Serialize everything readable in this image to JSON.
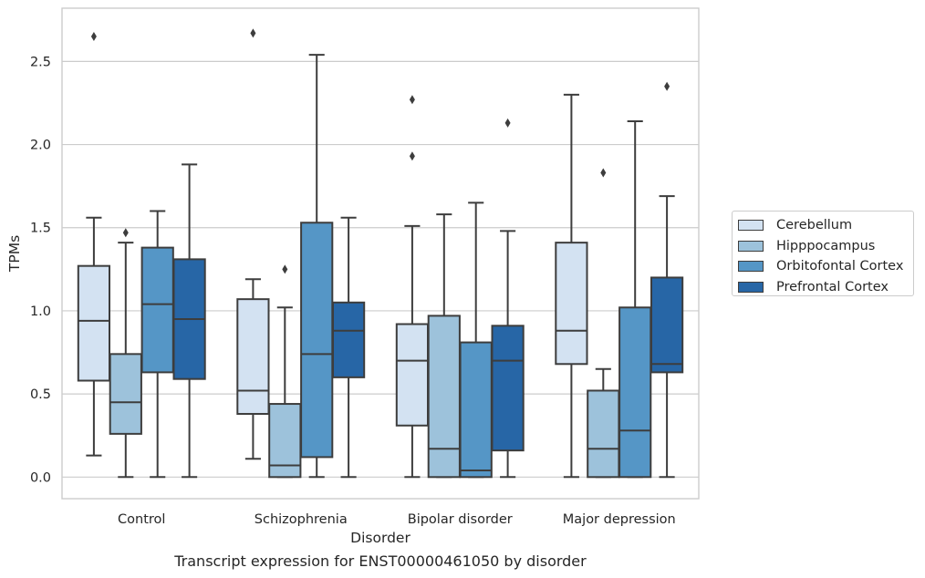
{
  "chart_data": {
    "type": "box",
    "title": "Transcript expression for ENST00000461050 by disorder",
    "xlabel": "Disorder",
    "ylabel": "TPMs",
    "ylim": [
      -0.13,
      2.82
    ],
    "yticks": [
      "0.0",
      "0.5",
      "1.0",
      "1.5",
      "2.0",
      "2.5"
    ],
    "ytick_values": [
      0,
      0.5,
      1.0,
      1.5,
      2.0,
      2.5
    ],
    "grid": "horizontal",
    "legend_position": "right",
    "categories": [
      "Control",
      "Schizophrenia",
      "Bipolar disorder",
      "Major depression"
    ],
    "series": [
      {
        "name": "Cerebellum",
        "color": "#d3e2f2",
        "boxes": [
          {
            "whislo": 0.13,
            "q1": 0.58,
            "med": 0.94,
            "q3": 1.27,
            "whishi": 1.56,
            "fliers": [
              2.65
            ]
          },
          {
            "whislo": 0.11,
            "q1": 0.38,
            "med": 0.52,
            "q3": 1.07,
            "whishi": 1.19,
            "fliers": [
              2.67
            ]
          },
          {
            "whislo": 0.0,
            "q1": 0.31,
            "med": 0.7,
            "q3": 0.92,
            "whishi": 1.51,
            "fliers": [
              1.93,
              2.27
            ]
          },
          {
            "whislo": 0.0,
            "q1": 0.68,
            "med": 0.88,
            "q3": 1.41,
            "whishi": 2.3,
            "fliers": []
          }
        ]
      },
      {
        "name": "Hipppocampus",
        "color": "#9dc2db",
        "boxes": [
          {
            "whislo": 0.0,
            "q1": 0.26,
            "med": 0.45,
            "q3": 0.74,
            "whishi": 1.41,
            "fliers": [
              1.47
            ]
          },
          {
            "whislo": 0.0,
            "q1": 0.0,
            "med": 0.07,
            "q3": 0.44,
            "whishi": 1.02,
            "fliers": [
              1.25
            ]
          },
          {
            "whislo": 0.0,
            "q1": 0.0,
            "med": 0.17,
            "q3": 0.97,
            "whishi": 1.58,
            "fliers": []
          },
          {
            "whislo": 0.0,
            "q1": 0.0,
            "med": 0.17,
            "q3": 0.52,
            "whishi": 0.65,
            "fliers": [
              1.83
            ]
          }
        ]
      },
      {
        "name": "Orbitofontal Cortex",
        "color": "#5596c6",
        "boxes": [
          {
            "whislo": 0.0,
            "q1": 0.63,
            "med": 1.04,
            "q3": 1.38,
            "whishi": 1.6,
            "fliers": []
          },
          {
            "whislo": 0.0,
            "q1": 0.12,
            "med": 0.74,
            "q3": 1.53,
            "whishi": 2.54,
            "fliers": []
          },
          {
            "whislo": 0.0,
            "q1": 0.0,
            "med": 0.04,
            "q3": 0.81,
            "whishi": 1.65,
            "fliers": []
          },
          {
            "whislo": 0.0,
            "q1": 0.0,
            "med": 0.28,
            "q3": 1.02,
            "whishi": 2.14,
            "fliers": []
          }
        ]
      },
      {
        "name": "Prefrontal Cortex",
        "color": "#2766a6",
        "boxes": [
          {
            "whislo": 0.0,
            "q1": 0.59,
            "med": 0.95,
            "q3": 1.31,
            "whishi": 1.88,
            "fliers": []
          },
          {
            "whislo": 0.0,
            "q1": 0.6,
            "med": 0.88,
            "q3": 1.05,
            "whishi": 1.56,
            "fliers": []
          },
          {
            "whislo": 0.0,
            "q1": 0.16,
            "med": 0.7,
            "q3": 0.91,
            "whishi": 1.48,
            "fliers": [
              2.13
            ]
          },
          {
            "whislo": 0.0,
            "q1": 0.63,
            "med": 0.68,
            "q3": 1.2,
            "whishi": 1.69,
            "fliers": [
              2.35
            ]
          }
        ]
      }
    ]
  }
}
